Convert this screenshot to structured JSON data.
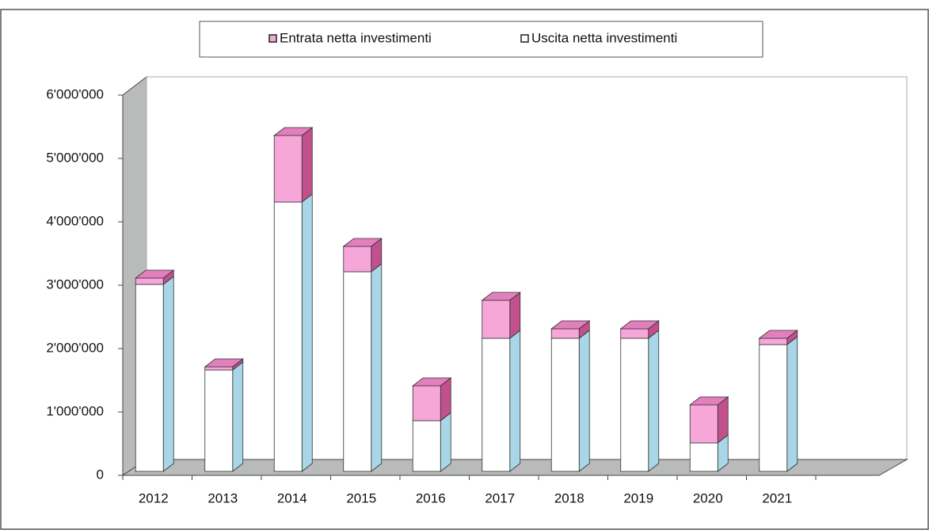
{
  "chart_data": {
    "type": "bar3d_stacked",
    "categories": [
      "2012",
      "2013",
      "2014",
      "2015",
      "2016",
      "2017",
      "2018",
      "2019",
      "2020",
      "2021"
    ],
    "series": [
      {
        "name": "Entrata netta investimenti",
        "color": "#f7a6d9",
        "values": [
          100000,
          50000,
          1050000,
          400000,
          550000,
          600000,
          150000,
          150000,
          600000,
          100000
        ]
      },
      {
        "name": "Uscita netta investimenti",
        "color": "#ffffff",
        "values": [
          2950000,
          1600000,
          4250000,
          3150000,
          800000,
          2100000,
          2100000,
          2100000,
          450000,
          2000000
        ]
      }
    ],
    "ylim": [
      0,
      6000000
    ],
    "yticks": [
      0,
      {
        "value": 1000000,
        "label": "1'000'000"
      },
      {
        "value": 2000000,
        "label": "2'000'000"
      },
      {
        "value": 3000000,
        "label": "3'000'000"
      },
      {
        "value": 4000000,
        "label": "4'000'000"
      },
      {
        "value": 5000000,
        "label": "5'000'000"
      },
      {
        "value": 6000000,
        "label": "6'000'000"
      }
    ],
    "legend": "top"
  }
}
